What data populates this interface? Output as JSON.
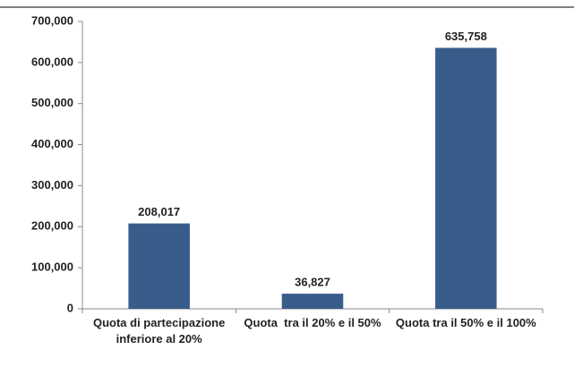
{
  "chart_data": {
    "type": "bar",
    "categories": [
      "Quota di partecipazione inferiore al 20%",
      "Quota  tra il 20% e il 50%",
      "Quota tra il 50% e il 100%"
    ],
    "values": [
      208017,
      36827,
      635758
    ],
    "value_labels": [
      "208,017",
      "36,827",
      "635,758"
    ],
    "color": "#385d8a",
    "ylim": [
      0,
      700000
    ],
    "yticks": [
      {
        "value": 0,
        "label": "0"
      },
      {
        "value": 100000,
        "label": "100,000"
      },
      {
        "value": 200000,
        "label": "200,000"
      },
      {
        "value": 300000,
        "label": "300,000"
      },
      {
        "value": 400000,
        "label": "400,000"
      },
      {
        "value": 500000,
        "label": "500,000"
      },
      {
        "value": 600000,
        "label": "600,000"
      },
      {
        "value": 700000,
        "label": "700,000"
      }
    ],
    "grid": false
  }
}
